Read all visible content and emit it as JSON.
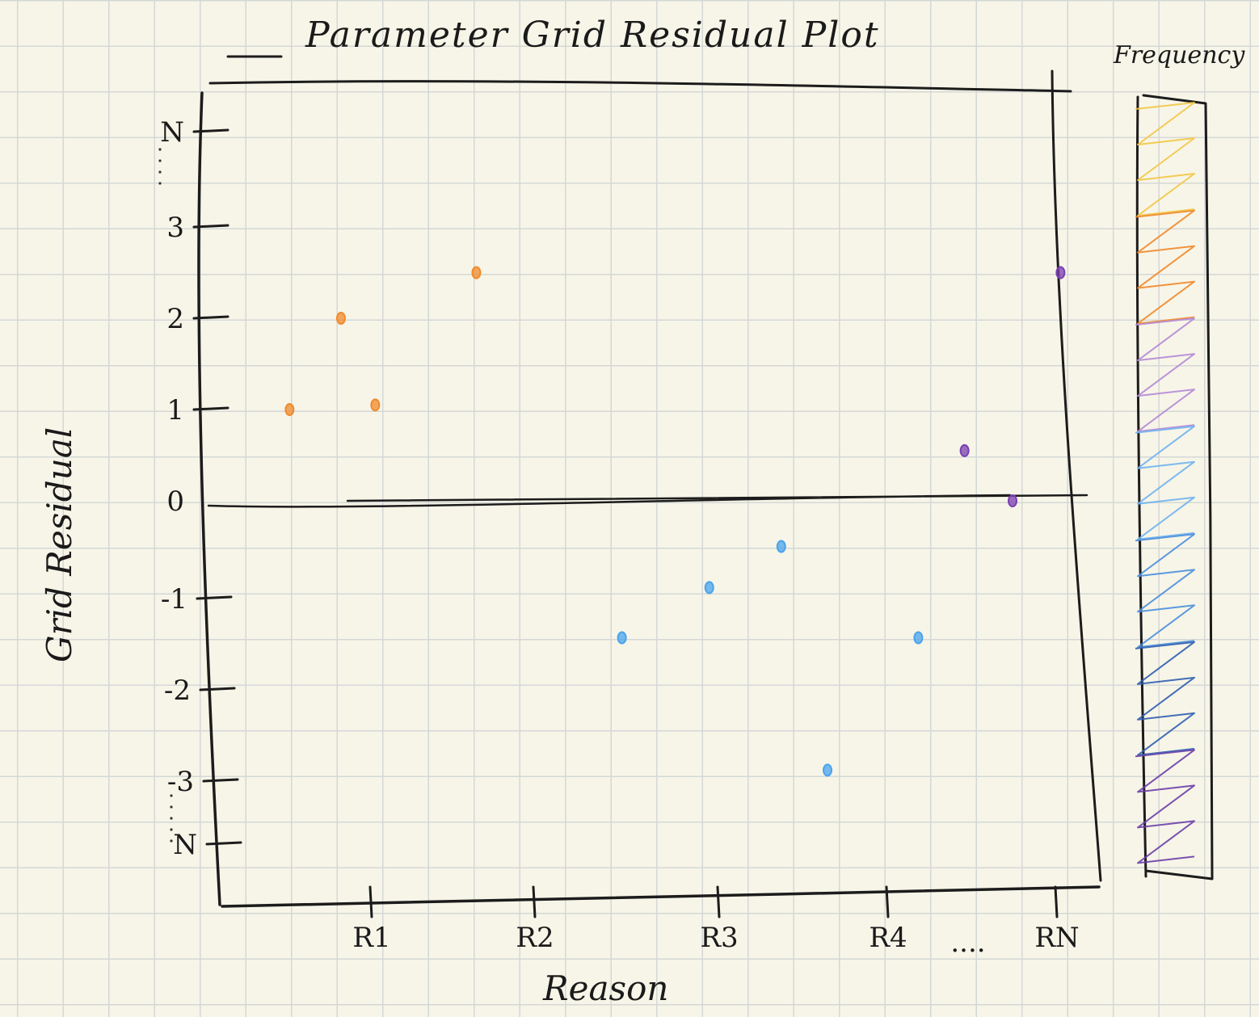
{
  "chart_data": {
    "type": "scatter",
    "title": "Parameter Grid Residual Plot",
    "xlabel": "Reason",
    "ylabel": "Grid Residual",
    "colorbar_label": "Frequency",
    "y_ticks": [
      "N",
      "3",
      "2",
      "1",
      "0",
      "-1",
      "-2",
      "-3",
      "N"
    ],
    "x_categories": [
      "R1",
      "R2",
      "R3",
      "R4",
      "RN"
    ],
    "x_ellipsis": "....",
    "ylim": [
      -4,
      4
    ],
    "zero_line": true,
    "series": [
      {
        "color": "#f08a2c",
        "points": [
          {
            "x": 0.53,
            "y": 1.0
          },
          {
            "x": 0.83,
            "y": 2.0
          },
          {
            "x": 1.03,
            "y": 1.05
          },
          {
            "x": 1.62,
            "y": 2.5
          }
        ]
      },
      {
        "color": "#4aa3ec",
        "points": [
          {
            "x": 2.47,
            "y": -1.5
          },
          {
            "x": 2.98,
            "y": -0.95
          },
          {
            "x": 3.4,
            "y": -0.5
          },
          {
            "x": 3.67,
            "y": -2.95
          },
          {
            "x": 4.2,
            "y": -1.5
          }
        ]
      },
      {
        "color": "#7a3fb0",
        "points": [
          {
            "x": 4.47,
            "y": 0.55
          },
          {
            "x": 4.75,
            "y": 0.0
          },
          {
            "x": 5.03,
            "y": 2.5
          }
        ]
      }
    ],
    "colorbar_colors": [
      "#f2c744",
      "#f08a2c",
      "#b48ad6",
      "#6fb2ee",
      "#4a8fdc",
      "#2f5fb0",
      "#6a3fa8"
    ]
  }
}
